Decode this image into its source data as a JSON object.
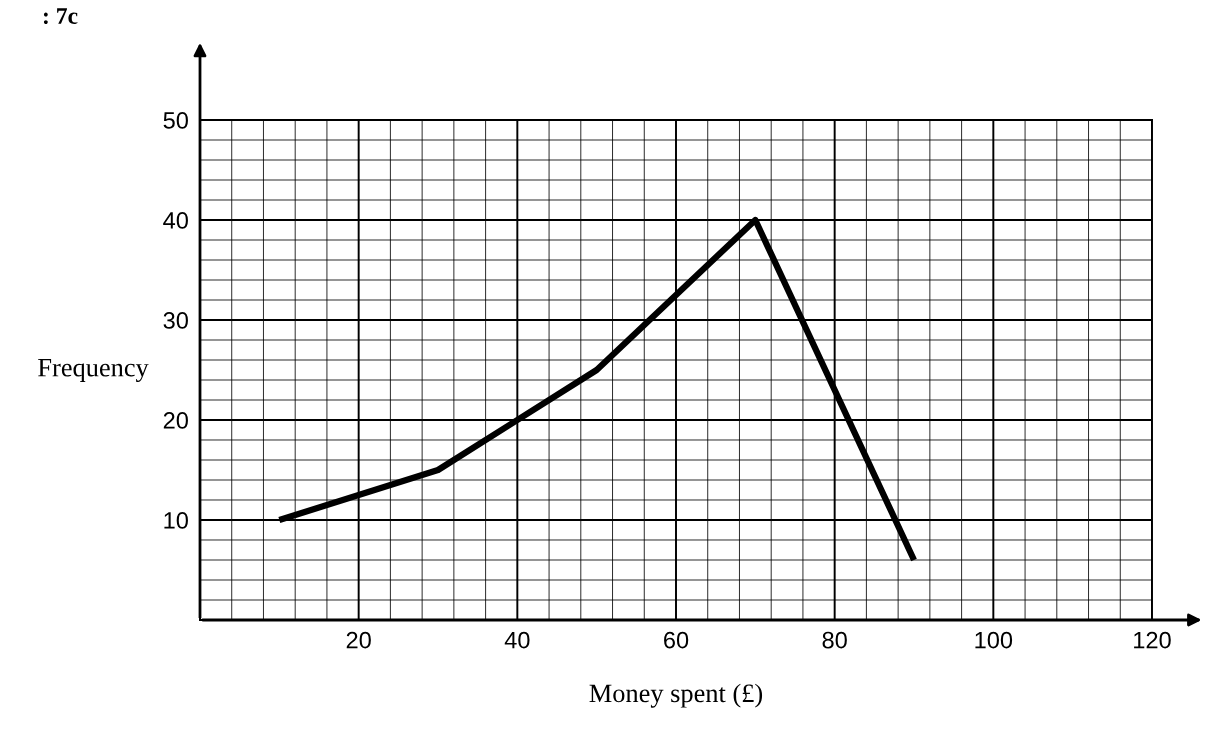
{
  "chart_data": {
    "type": "line",
    "title": ": 7c",
    "xlabel": "Money spent (£)",
    "ylabel": "Frequency",
    "x": [
      10,
      30,
      50,
      70,
      90
    ],
    "series": [
      {
        "color": "#000000",
        "values": [
          10,
          15,
          25,
          40,
          6
        ]
      }
    ],
    "xlim": [
      0,
      120
    ],
    "ylim": [
      0,
      50
    ],
    "xticks": [
      {
        "value": 0,
        "label": null
      },
      20,
      40,
      60,
      80,
      100,
      120
    ],
    "yticks": [
      {
        "value": 0,
        "label": null
      },
      10,
      20,
      30,
      40,
      50
    ],
    "grid": true,
    "marker": "none",
    "line_style": "solid"
  }
}
